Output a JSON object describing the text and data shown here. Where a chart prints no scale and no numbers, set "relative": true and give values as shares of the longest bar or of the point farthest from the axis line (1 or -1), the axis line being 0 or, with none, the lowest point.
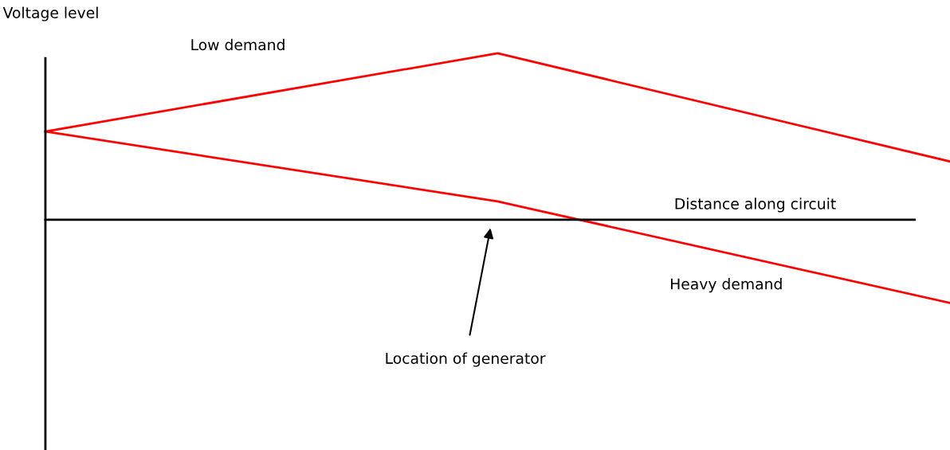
{
  "chart_data": {
    "type": "line",
    "relative": true,
    "xlabel": "Distance along circuit",
    "ylabel": "Voltage level",
    "categories": [
      null,
      null,
      null
    ],
    "series": [
      {
        "name": "Low demand",
        "color": "#ff0000",
        "values": [
          0.53,
          1.0,
          0.35
        ]
      },
      {
        "name": "Heavy demand",
        "color": "#ff0000",
        "values": [
          0.53,
          0.11,
          -0.5
        ]
      }
    ],
    "annotations": [
      "Location of generator"
    ],
    "grid": false,
    "legend": false,
    "tick_labels": false,
    "marker": "none",
    "line_style": "solid"
  }
}
